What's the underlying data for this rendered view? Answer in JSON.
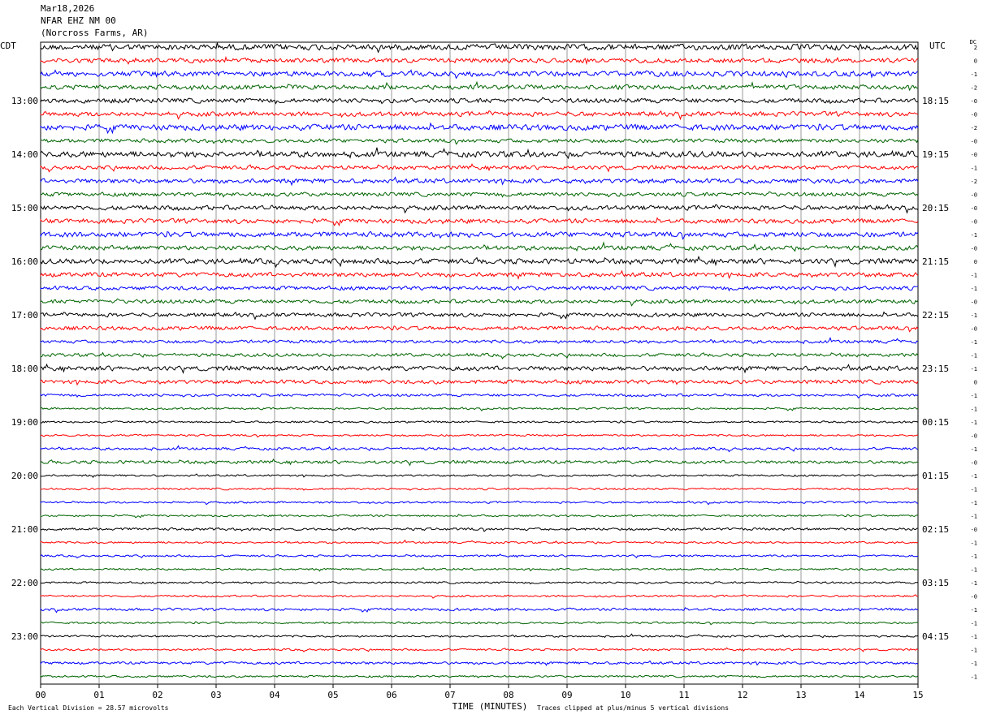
{
  "header": {
    "date": "Mar18,2026",
    "station": "NFAR EHZ NM 00",
    "location": "(Norcross Farms, AR)"
  },
  "left_timezone": "CDT",
  "right_timezone": "UTC",
  "dc_label": "DC",
  "colors": {
    "black": "#000000",
    "red": "#ff0000",
    "blue": "#0000ff",
    "green": "#006400",
    "grid": "#808080"
  },
  "chart_data": {
    "type": "line",
    "title": "",
    "xlabel": "TIME (MINUTES)",
    "x_ticks": [
      "00",
      "01",
      "02",
      "03",
      "04",
      "05",
      "06",
      "07",
      "08",
      "09",
      "10",
      "11",
      "12",
      "13",
      "14",
      "15"
    ],
    "xlim": [
      0,
      15
    ],
    "trace_color_cycle": [
      "black",
      "red",
      "blue",
      "green"
    ],
    "rows": 48,
    "left_hour_labels": [
      "13:00",
      "14:00",
      "15:00",
      "16:00",
      "17:00",
      "18:00",
      "19:00",
      "20:00",
      "21:00",
      "22:00",
      "23:00"
    ],
    "right_hour_labels": [
      "18:15",
      "19:15",
      "20:15",
      "21:15",
      "22:15",
      "23:15",
      "00:15",
      "01:15",
      "02:15",
      "03:15",
      "04:15"
    ],
    "dc_offsets": [
      "2",
      "0",
      "-1",
      "-2",
      "-0",
      "-0",
      "-2",
      "-0",
      "-0",
      "-1",
      "-2",
      "-0",
      "-0",
      "-0",
      "-1",
      "-0",
      "0",
      "-1",
      "-1",
      "-0",
      "-1",
      "-0",
      "-1",
      "-1",
      "-1",
      "0",
      "-1",
      "-1",
      "-1",
      "-0",
      "-1",
      "-0",
      "-1",
      "-1",
      "-1",
      "-1",
      "-0",
      "-1",
      "-1",
      "-1",
      "-1",
      "-0",
      "-1",
      "-1",
      "-1",
      "-1",
      "-1",
      "-1"
    ],
    "amplitude_profile": [
      9,
      7,
      8,
      7,
      7,
      7,
      9,
      6,
      9,
      6,
      7,
      6,
      7,
      7,
      8,
      7,
      8,
      7,
      6,
      6,
      6,
      6,
      5,
      5,
      7,
      6,
      4,
      3,
      3,
      3,
      4,
      5,
      3,
      3,
      3,
      3,
      4,
      3,
      3,
      3,
      3,
      3,
      4,
      3,
      3,
      3,
      4,
      3
    ],
    "scale_note": "Each Vertical Division =   28.57 microvolts",
    "clip_note": "Traces clipped at plus/minus 5 vertical divisions"
  }
}
